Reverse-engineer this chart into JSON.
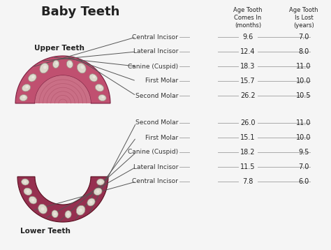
{
  "title": "Baby Teeth",
  "title_fontsize": 13,
  "title_weight": "bold",
  "bg_color": "#f5f5f5",
  "upper_label": "Upper Teeth",
  "lower_label": "Lower Teeth",
  "col_header_1": "Age Tooth\nComes In\n(months)",
  "col_header_2": "Age Tooth\nIs Lost\n(years)",
  "upper_teeth": [
    {
      "name": "Central Incisor",
      "comes_in": "9.6",
      "is_lost": "7.0"
    },
    {
      "name": "Lateral Incisor",
      "comes_in": "12.4",
      "is_lost": "8.0"
    },
    {
      "name": "Canine (Cuspid)",
      "comes_in": "18.3",
      "is_lost": "11.0"
    },
    {
      "name": "First Molar",
      "comes_in": "15.7",
      "is_lost": "10.0"
    },
    {
      "name": "Second Molar",
      "comes_in": "26.2",
      "is_lost": "10.5"
    }
  ],
  "lower_teeth": [
    {
      "name": "Second Molar",
      "comes_in": "26.0",
      "is_lost": "11.0"
    },
    {
      "name": "First Molar",
      "comes_in": "15.1",
      "is_lost": "10.0"
    },
    {
      "name": "Canine (Cuspid)",
      "comes_in": "18.2",
      "is_lost": "9.5"
    },
    {
      "name": "Lateral Incisor",
      "comes_in": "11.5",
      "is_lost": "7.0"
    },
    {
      "name": "Central Incisor",
      "comes_in": "7.8",
      "is_lost": "6.0"
    }
  ],
  "text_color": "#222222",
  "label_color": "#333333",
  "line_color": "#aaaaaa",
  "arrow_color": "#555555",
  "gum_color_upper": "#c05070",
  "gum_color_upper_edge": "#7a2040",
  "gum_color_lower": "#963050",
  "gum_color_lower_edge": "#5a1020",
  "palate_color": "#c86880",
  "palate_line_color": "#a04058",
  "tooth_color": "#ddd8cc",
  "tooth_highlight": "#f0ece4",
  "tooth_outline": "#999888"
}
